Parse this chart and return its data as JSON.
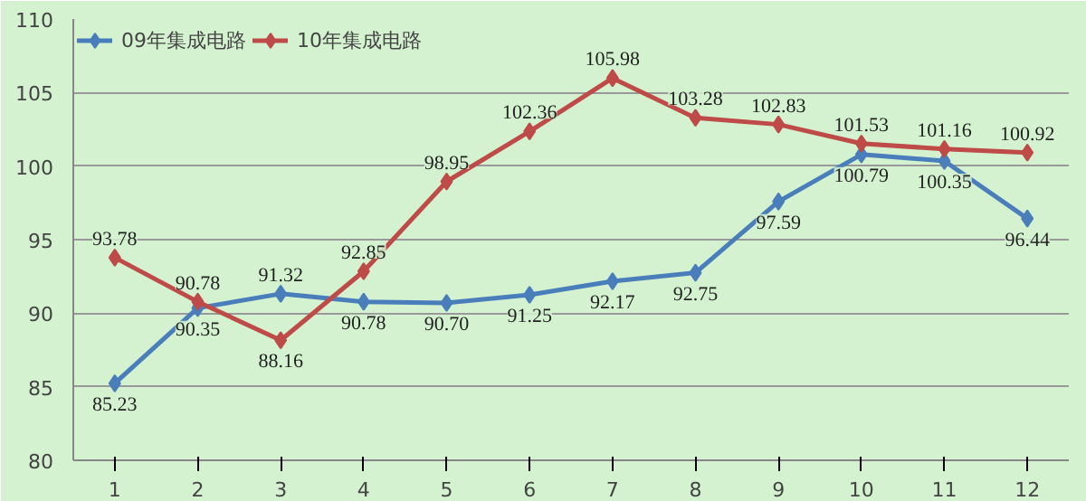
{
  "chart_data": {
    "type": "line",
    "x": [
      1,
      2,
      3,
      4,
      5,
      6,
      7,
      8,
      9,
      10,
      11,
      12
    ],
    "xlim": [
      0.5,
      12.5
    ],
    "xticks": [
      1,
      2,
      3,
      4,
      5,
      6,
      7,
      8,
      9,
      10,
      11,
      12
    ],
    "series": [
      {
        "name": "09年集成电路",
        "color": "#4a7ebb",
        "values": [
          85.23,
          90.35,
          91.32,
          90.78,
          90.7,
          91.25,
          92.17,
          92.75,
          97.59,
          100.79,
          100.35,
          96.44
        ],
        "value_labels": [
          "85.23",
          "90.35",
          "91.32",
          "90.78",
          "90.70",
          "91.25",
          "92.17",
          "92.75",
          "97.59",
          "100.79",
          "100.35",
          "96.44"
        ]
      },
      {
        "name": "10年集成电路",
        "color": "#be4b48",
        "values": [
          93.78,
          90.78,
          88.16,
          92.85,
          98.95,
          102.36,
          105.98,
          103.28,
          102.83,
          101.53,
          101.16,
          100.92
        ],
        "value_labels": [
          "93.78",
          "90.78",
          "88.16",
          "92.85",
          "98.95",
          "102.36",
          "105.98",
          "103.28",
          "102.83",
          "101.53",
          "101.16",
          "100.92"
        ]
      }
    ],
    "ylim": [
      80,
      110
    ],
    "yticks": [
      80,
      85,
      90,
      95,
      100,
      105,
      110
    ],
    "grid": "y",
    "legend": "top left",
    "marker": "diamond",
    "line_style": "solid"
  }
}
